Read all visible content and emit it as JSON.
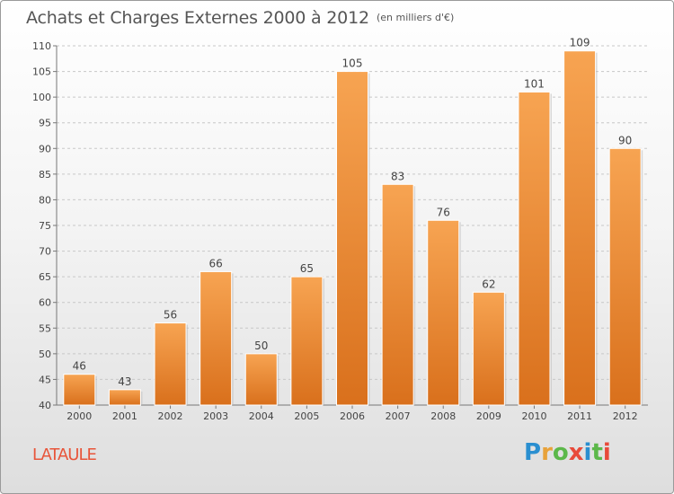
{
  "chart_data": {
    "type": "bar",
    "title": "Achats et Charges Externes 2000 à 2012",
    "subtitle": "(en milliers d'€)",
    "categories": [
      "2000",
      "2001",
      "2002",
      "2003",
      "2004",
      "2005",
      "2006",
      "2007",
      "2008",
      "2009",
      "2010",
      "2011",
      "2012"
    ],
    "values": [
      46,
      43,
      56,
      66,
      50,
      65,
      105,
      83,
      76,
      62,
      101,
      109,
      90
    ],
    "ylim": [
      40,
      110
    ],
    "yticks": [
      40,
      45,
      50,
      55,
      60,
      65,
      70,
      75,
      80,
      85,
      90,
      95,
      100,
      105,
      110
    ],
    "grid": true,
    "bar_color": "#f0923a"
  },
  "place": "LATAULE",
  "logo": {
    "letters": [
      "P",
      "r",
      "o",
      "x",
      "i",
      "t",
      "i"
    ],
    "colors": [
      "#2a8fd0",
      "#e8a23a",
      "#5cb84a",
      "#e84a3a",
      "#2a8fd0",
      "#5cb84a",
      "#e84a3a"
    ]
  }
}
